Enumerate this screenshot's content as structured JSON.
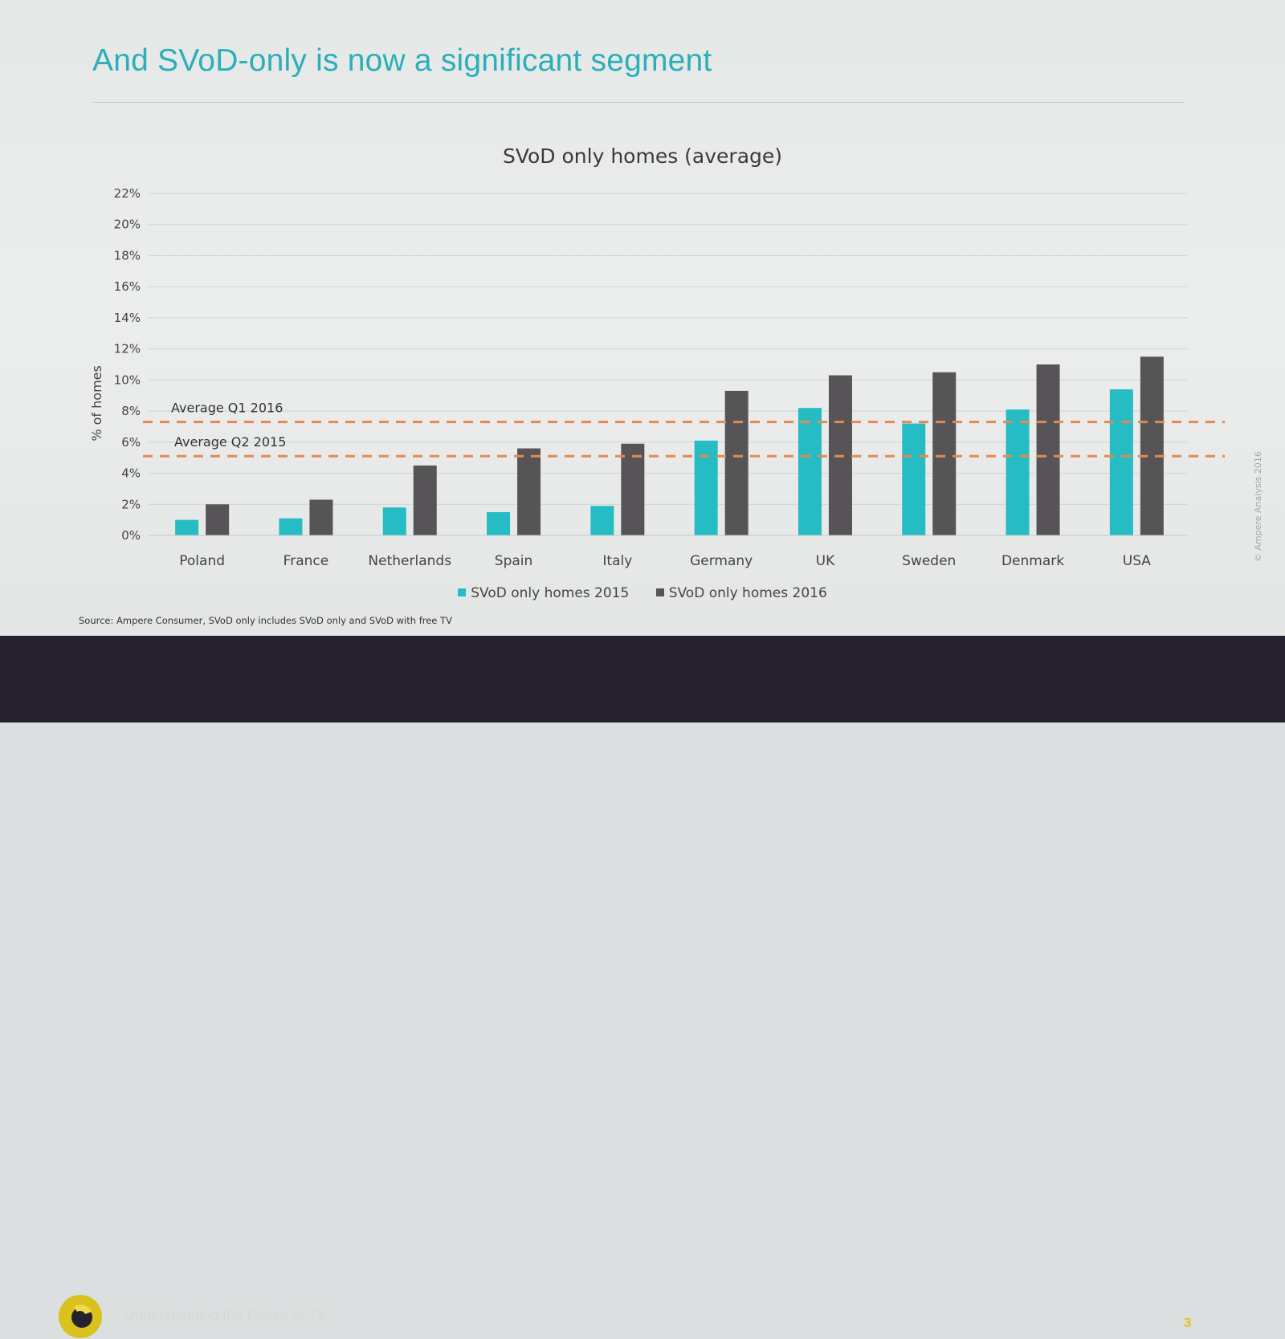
{
  "slide": {
    "title": "And SVoD-only is now a significant segment",
    "source_note": "Source: Ampere Consumer, SVoD only includes SVoD only and SVoD with free TV",
    "copyright": "© Ampere Analysis 2016"
  },
  "footer": {
    "tagline": "Understanding the Future of TV",
    "page_number": "3",
    "logo_icon": "ampere-ring-logo-icon"
  },
  "colors": {
    "accent": "#2bafb8",
    "series_2015": "#25bcc4",
    "series_2016": "#575457",
    "average_line": "#e6894f",
    "footer_bg": "#25212f",
    "logo": "#d9c21e"
  },
  "chart_data": {
    "type": "bar",
    "title": "SVoD only homes (average)",
    "xlabel": "",
    "ylabel": "% of homes",
    "ylim": [
      0,
      22
    ],
    "yticks": [
      0,
      2,
      4,
      6,
      8,
      10,
      12,
      14,
      16,
      18,
      20,
      22
    ],
    "ytick_labels": [
      "0%",
      "2%",
      "4%",
      "6%",
      "8%",
      "10%",
      "12%",
      "14%",
      "16%",
      "18%",
      "20%",
      "22%"
    ],
    "grid": true,
    "legend_position": "bottom",
    "categories": [
      "Poland",
      "France",
      "Netherlands",
      "Spain",
      "Italy",
      "Germany",
      "UK",
      "Sweden",
      "Denmark",
      "USA"
    ],
    "series": [
      {
        "name": "SVoD only homes 2015",
        "values": [
          1.0,
          1.1,
          1.8,
          1.5,
          1.9,
          6.1,
          8.2,
          7.2,
          8.1,
          9.4
        ]
      },
      {
        "name": "SVoD only homes 2016",
        "values": [
          2.0,
          2.3,
          4.5,
          5.6,
          5.9,
          9.3,
          10.3,
          10.5,
          11.0,
          11.5
        ]
      }
    ],
    "reference_lines": [
      {
        "label": "Average Q1 2016",
        "value": 7.3
      },
      {
        "label": "Average Q2 2015",
        "value": 5.1
      }
    ]
  }
}
